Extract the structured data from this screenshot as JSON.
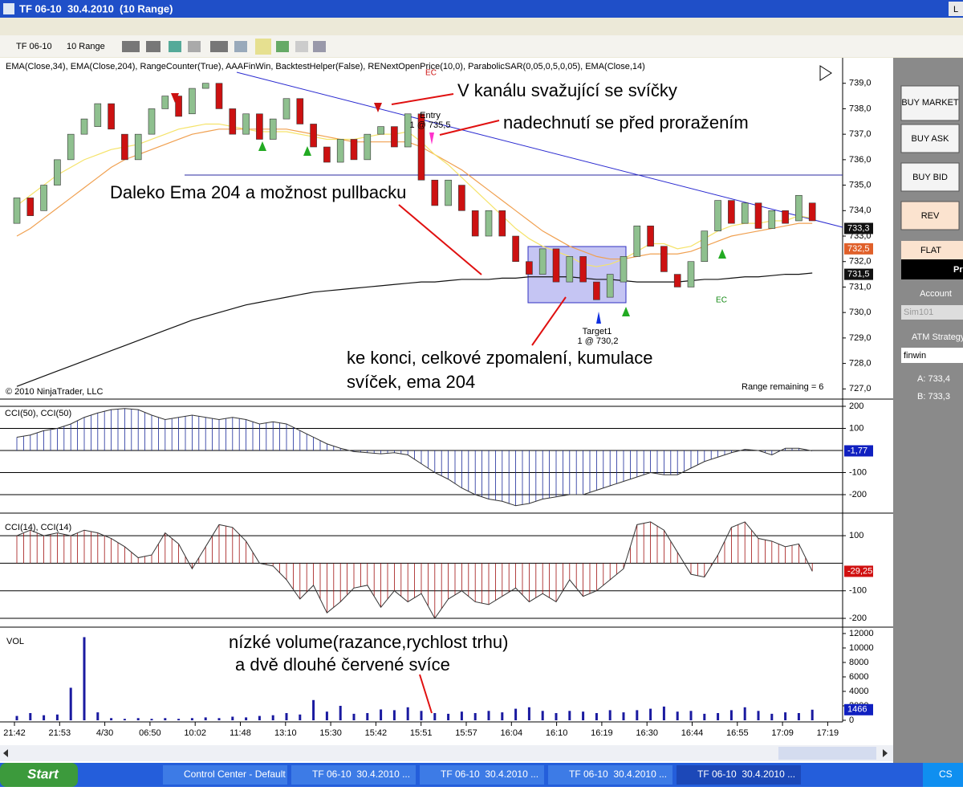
{
  "window": {
    "title": "TF 06-10  30.4.2010  (10 Range)",
    "corner_button": "L",
    "toolbar": {
      "instrument": "TF 06-10",
      "period": "10 Range"
    }
  },
  "chart_data": [
    {
      "type": "candlestick",
      "indicator_label": "EMA(Close,34), EMA(Close,204), RangeCounter(True), AAAFinWin, BacktestHelper(False), RENextOpenPrice(10,0), ParabolicSAR(0,05,0,5,0,05), EMA(Close,14)",
      "up_color": "#8fc08f",
      "down_color": "#cc1111",
      "open": [
        733.5,
        734.5,
        734,
        735,
        736,
        737,
        737.3,
        738.2,
        737,
        736,
        737,
        738,
        738.5,
        737.8,
        738.8,
        739,
        738,
        737,
        737.8,
        736.8,
        737.6,
        738.4,
        737.4,
        736.5,
        735.9,
        736.8,
        736,
        737,
        737.3,
        736.5,
        737.8,
        735.2,
        734.2,
        735,
        734,
        733,
        734,
        733,
        732,
        731.5,
        732.5,
        731.2,
        732.2,
        731.2,
        730.6,
        731.2,
        732.2,
        733.4,
        732.6,
        731.5,
        731,
        732,
        733.2,
        734.4,
        733.5,
        734.3,
        733.3,
        734,
        733.6,
        734.3
      ],
      "close": [
        734.5,
        733.8,
        735,
        736,
        737,
        737.6,
        738.2,
        737.2,
        736,
        737,
        738,
        738.5,
        737.7,
        738.8,
        739,
        738,
        737,
        737.8,
        736.8,
        737.6,
        738.4,
        737.4,
        736.5,
        735.9,
        736.8,
        736,
        737,
        737.3,
        736.5,
        737.8,
        735.2,
        734.2,
        735.2,
        734,
        733,
        734,
        733,
        732,
        731.5,
        732.5,
        731.2,
        732.2,
        731.2,
        730.5,
        731.5,
        732.2,
        733.4,
        732.6,
        731.6,
        731,
        732,
        733.2,
        734.4,
        733.5,
        734.3,
        733.3,
        734,
        733.5,
        734.6,
        733.6
      ],
      "lines": [
        {
          "color": "#111111",
          "values": [
            727.1,
            727.3,
            727.5,
            727.7,
            727.9,
            728.1,
            728.3,
            728.5,
            728.7,
            728.9,
            729.1,
            729.3,
            729.5,
            729.7,
            729.85,
            730.0,
            730.15,
            730.3,
            730.4,
            730.5,
            730.6,
            730.7,
            730.8,
            730.85,
            730.9,
            730.95,
            731.0,
            731.05,
            731.1,
            731.15,
            731.2,
            731.2,
            731.25,
            731.3,
            731.3,
            731.3,
            731.35,
            731.35,
            731.4,
            731.4,
            731.4,
            731.4,
            731.35,
            731.3,
            731.3,
            731.25,
            731.2,
            731.2,
            731.2,
            731.2,
            731.25,
            731.3,
            731.3,
            731.35,
            731.4,
            731.4,
            731.45,
            731.5,
            731.5,
            731.55
          ]
        },
        {
          "color": "#f0a050",
          "values": [
            733.0,
            733.3,
            733.7,
            734.1,
            734.5,
            734.9,
            735.3,
            735.7,
            736.0,
            736.2,
            736.4,
            736.6,
            736.8,
            737.0,
            737.1,
            737.2,
            737.2,
            737.2,
            737.2,
            737.2,
            737.2,
            737.1,
            737.0,
            736.9,
            736.8,
            736.7,
            736.7,
            736.7,
            736.7,
            736.7,
            736.5,
            736.2,
            735.9,
            735.6,
            735.2,
            734.8,
            734.4,
            734.0,
            733.6,
            733.2,
            732.9,
            732.6,
            732.4,
            732.2,
            732.1,
            732.1,
            732.2,
            732.3,
            732.3,
            732.3,
            732.4,
            732.6,
            732.8,
            733.0,
            733.1,
            733.2,
            733.3,
            733.4,
            733.5,
            733.5
          ]
        },
        {
          "color": "#f5e36a",
          "values": [
            734.2,
            734.6,
            735.0,
            735.4,
            735.7,
            736.0,
            736.2,
            736.4,
            736.5,
            736.6,
            736.8,
            737.0,
            737.2,
            737.3,
            737.4,
            737.4,
            737.3,
            737.2,
            737.1,
            737.1,
            737.1,
            737.0,
            736.9,
            736.8,
            736.8,
            736.8,
            736.9,
            737.0,
            737.0,
            737.1,
            736.7,
            736.2,
            735.8,
            735.3,
            734.8,
            734.3,
            733.8,
            733.3,
            732.9,
            732.6,
            732.4,
            732.2,
            731.9,
            731.8,
            731.9,
            732.1,
            732.4,
            732.7,
            732.7,
            732.5,
            732.6,
            732.9,
            733.2,
            733.4,
            733.5,
            733.5,
            733.6,
            733.6,
            733.8,
            733.7
          ]
        }
      ],
      "ylim": [
        726.6,
        740
      ],
      "yticks": [
        {
          "value": 727,
          "label": "727,0"
        },
        {
          "value": 728,
          "label": "728,0"
        },
        {
          "value": 729,
          "label": "729,0"
        },
        {
          "value": 730,
          "label": "730,0"
        },
        {
          "value": 731,
          "label": "731,0"
        },
        {
          "value": 732,
          "label": "732,0"
        },
        {
          "value": 733,
          "label": "733,0"
        },
        {
          "value": 734,
          "label": "734,0"
        },
        {
          "value": 735,
          "label": "735,0"
        },
        {
          "value": 736,
          "label": "736,0"
        },
        {
          "value": 737,
          "label": "737,0"
        },
        {
          "value": 738,
          "label": "738,0"
        },
        {
          "value": 739,
          "label": "739,0"
        }
      ],
      "price_markers": [
        {
          "value": 733.3,
          "label": "733,3",
          "color": "#111111"
        },
        {
          "value": 732.5,
          "label": "732,5",
          "color": "#e0602a"
        },
        {
          "value": 731.5,
          "label": "731,5",
          "color": "#111111"
        }
      ],
      "grid": false
    },
    {
      "type": "oscillator",
      "label": "CCI(50), CCI(50)",
      "color": "#1a2a9a",
      "values": [
        60,
        70,
        90,
        100,
        120,
        150,
        170,
        185,
        190,
        185,
        160,
        140,
        150,
        160,
        150,
        140,
        150,
        140,
        120,
        130,
        120,
        90,
        60,
        30,
        10,
        -5,
        -10,
        -15,
        -10,
        -20,
        -60,
        -100,
        -130,
        -170,
        -200,
        -220,
        -230,
        -250,
        -240,
        -220,
        -210,
        -200,
        -200,
        -180,
        -160,
        -140,
        -120,
        -100,
        -110,
        -110,
        -80,
        -50,
        -30,
        -10,
        5,
        0,
        -20,
        10,
        10,
        -1.77
      ],
      "last": {
        "value": -1.77,
        "label": "-1,77"
      },
      "ylim": [
        -280,
        229
      ],
      "yticks": [
        200,
        100,
        -100,
        -200
      ],
      "grid": true
    },
    {
      "type": "oscillator",
      "label": "CCI(14), CCI(14)",
      "color": "#a01010",
      "values": [
        100,
        120,
        100,
        110,
        100,
        120,
        110,
        90,
        60,
        20,
        30,
        110,
        70,
        -20,
        60,
        140,
        130,
        80,
        0,
        -10,
        -60,
        -130,
        -80,
        -180,
        -140,
        -90,
        -80,
        -160,
        -100,
        -140,
        -110,
        -200,
        -130,
        -100,
        -140,
        -150,
        -120,
        -90,
        -140,
        -110,
        -140,
        -60,
        -120,
        -100,
        -60,
        -20,
        140,
        150,
        120,
        40,
        -40,
        -50,
        30,
        130,
        150,
        90,
        80,
        60,
        70,
        -29.25
      ],
      "last": {
        "value": -29.25,
        "label": "-29,25"
      },
      "ylim": [
        -229,
        176
      ],
      "yticks": [
        100,
        -100,
        -200
      ],
      "grid": true
    },
    {
      "type": "bar",
      "label": "VOL",
      "color": "#1a1aa0",
      "values": [
        600,
        1000,
        700,
        800,
        4500,
        11500,
        1100,
        300,
        200,
        300,
        200,
        300,
        200,
        300,
        400,
        300,
        500,
        400,
        600,
        700,
        1000,
        800,
        2800,
        1200,
        2000,
        900,
        1000,
        1500,
        1400,
        1800,
        1300,
        1000,
        900,
        1200,
        1000,
        1300,
        1100,
        1600,
        1800,
        1300,
        1000,
        1300,
        1200,
        1000,
        1400,
        1100,
        1400,
        1600,
        1900,
        1200,
        1300,
        900,
        1000,
        1400,
        1800,
        1300,
        900,
        1100,
        1000,
        1466
      ],
      "last": {
        "value": 1466,
        "label": "1466"
      },
      "ylim": [
        0,
        12660
      ],
      "yticks": [
        0,
        2000,
        4000,
        6000,
        8000,
        10000,
        12000
      ],
      "grid": false,
      "time_axis": [
        "21:42",
        "21:53",
        "4/30",
        "06:50",
        "10:02",
        "11:48",
        "13:10",
        "15:30",
        "15:42",
        "15:51",
        "15:57",
        "16:04",
        "16:10",
        "16:19",
        "16:30",
        "16:44",
        "16:55",
        "17:09",
        "17:19"
      ]
    }
  ],
  "annotations": [
    "V kanálu svažující se svíčky",
    "nadechnutí se před proražením",
    "Daleko Ema 204 a možnost pullbacku",
    "ke konci, celkové zpomalení, kumulace",
    "svíček, ema 204",
    "nízké volume(razance,rychlost trhu)",
    "a dvě dlouhé červené svíce"
  ],
  "chart_labels": {
    "entry": "Entry",
    "entry_fill": "1 @ 735,5",
    "target": "Target1",
    "target_fill": "1 @ 730,2",
    "exit_top": "EC",
    "exit_bottom": "EC",
    "copyright": "© 2010 NinjaTrader, LLC",
    "range_remaining": "Range remaining = 6"
  },
  "side_panel": {
    "buttons": [
      "BUY MARKET",
      "BUY ASK",
      "BUY BID",
      "REV"
    ],
    "position": "FLAT",
    "pnl": "Pr",
    "account_label": "Account",
    "account": "Sim101",
    "atm_label": "ATM Strategy",
    "atm": "finwin",
    "ask": "A: 733,4",
    "bid": "B: 733,3"
  },
  "taskbar": {
    "start": "Start",
    "items": [
      "Control Center - Default",
      "TF 06-10  30.4.2010 ...",
      "TF 06-10  30.4.2010 ...",
      "TF 06-10  30.4.2010 ...",
      "TF 06-10  30.4.2010 ..."
    ],
    "tray": "CS"
  }
}
